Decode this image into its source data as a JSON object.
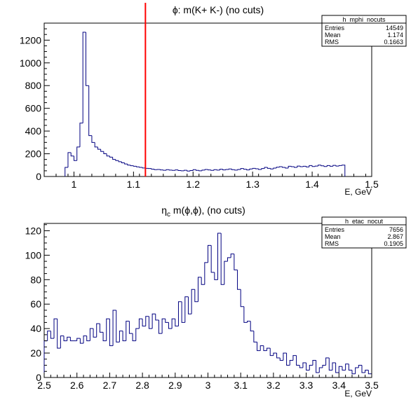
{
  "chart_data": [
    {
      "type": "histogram",
      "title": "ϕ: m(K+ K-) (no cuts)",
      "title_symbol": "ϕ",
      "title_rest": ": m(K+ K-) (no cuts)",
      "xlabel": "E, GeV",
      "ylabel": "",
      "xlim": [
        0.95,
        1.5
      ],
      "ylim": [
        0,
        1350
      ],
      "xticks": [
        {
          "value": 1.0,
          "label": "1"
        },
        {
          "value": 1.1,
          "label": "1.1"
        },
        {
          "value": 1.2,
          "label": "1.2"
        },
        {
          "value": 1.3,
          "label": "1.3"
        },
        {
          "value": 1.4,
          "label": "1.4"
        },
        {
          "value": 1.5,
          "label": "1.5"
        }
      ],
      "yticks": [
        {
          "value": 0,
          "label": "0"
        },
        {
          "value": 200,
          "label": "200"
        },
        {
          "value": 400,
          "label": "400"
        },
        {
          "value": 600,
          "label": "600"
        },
        {
          "value": 800,
          "label": "800"
        },
        {
          "value": 1000,
          "label": "1000"
        },
        {
          "value": 1200,
          "label": "1200"
        }
      ],
      "line_color": "#000080",
      "cut_line": {
        "x": 1.12,
        "color": "#ff0000"
      },
      "stats": {
        "name": "h_mphi_nocuts",
        "rows": [
          {
            "label": "Entries",
            "value": "14549"
          },
          {
            "label": "Mean",
            "value": "1.174"
          },
          {
            "label": "RMS",
            "value": "0.1663"
          }
        ]
      },
      "bin_start": 0.985,
      "bin_width": 0.005,
      "values": [
        80,
        210,
        180,
        140,
        260,
        470,
        1270,
        800,
        360,
        300,
        260,
        240,
        220,
        200,
        180,
        170,
        150,
        140,
        130,
        120,
        110,
        100,
        95,
        90,
        85,
        80,
        75,
        72,
        70,
        65,
        60,
        62,
        58,
        55,
        60,
        56,
        54,
        58,
        52,
        50,
        55,
        48,
        52,
        60,
        54,
        50,
        56,
        62,
        58,
        54,
        60,
        56,
        64,
        58,
        62,
        66,
        60,
        56,
        62,
        70,
        64,
        58,
        66,
        72,
        68,
        62,
        70,
        80,
        72,
        66,
        74,
        82,
        86,
        80,
        74,
        90,
        86,
        80,
        92,
        86,
        90,
        84,
        96,
        88,
        92,
        100,
        94,
        88,
        96,
        90,
        98,
        92,
        96,
        100
      ]
    },
    {
      "type": "histogram",
      "title": "η_c m(ϕ,ϕ), (no cuts)",
      "title_symbol": "η",
      "title_sub": "c",
      "title_rest": " m(ϕ,ϕ), (no cuts)",
      "xlabel": "E, GeV",
      "ylabel": "",
      "xlim": [
        2.5,
        3.5
      ],
      "ylim": [
        0,
        126
      ],
      "xticks": [
        {
          "value": 2.5,
          "label": "2.5"
        },
        {
          "value": 2.6,
          "label": "2.6"
        },
        {
          "value": 2.7,
          "label": "2.7"
        },
        {
          "value": 2.8,
          "label": "2.8"
        },
        {
          "value": 2.9,
          "label": "2.9"
        },
        {
          "value": 3.0,
          "label": "3"
        },
        {
          "value": 3.1,
          "label": "3.1"
        },
        {
          "value": 3.2,
          "label": "3.2"
        },
        {
          "value": 3.3,
          "label": "3.3"
        },
        {
          "value": 3.4,
          "label": "3.4"
        },
        {
          "value": 3.5,
          "label": "3.5"
        }
      ],
      "yticks": [
        {
          "value": 0,
          "label": "0"
        },
        {
          "value": 20,
          "label": "20"
        },
        {
          "value": 40,
          "label": "40"
        },
        {
          "value": 60,
          "label": "60"
        },
        {
          "value": 80,
          "label": "80"
        },
        {
          "value": 100,
          "label": "100"
        },
        {
          "value": 120,
          "label": "120"
        }
      ],
      "line_color": "#000080",
      "stats": {
        "name": "h_etac_nocut",
        "rows": [
          {
            "label": "Entries",
            "value": "7656"
          },
          {
            "label": "Mean",
            "value": "2.867"
          },
          {
            "label": "RMS",
            "value": "0.1905"
          }
        ]
      },
      "bin_start": 2.5,
      "bin_width": 0.01,
      "values": [
        30,
        38,
        32,
        48,
        24,
        34,
        30,
        33,
        30,
        30,
        32,
        28,
        34,
        30,
        40,
        33,
        44,
        37,
        30,
        48,
        26,
        55,
        29,
        38,
        30,
        46,
        36,
        30,
        40,
        48,
        42,
        50,
        40,
        52,
        47,
        36,
        48,
        45,
        40,
        48,
        42,
        62,
        45,
        66,
        52,
        72,
        62,
        82,
        76,
        94,
        108,
        86,
        80,
        118,
        76,
        95,
        98,
        101,
        88,
        72,
        58,
        45,
        46,
        38,
        29,
        22,
        26,
        22,
        24,
        18,
        20,
        16,
        14,
        20,
        10,
        14,
        18,
        10,
        8,
        12,
        6,
        10,
        14,
        4,
        8,
        10,
        16,
        6,
        12,
        4,
        9,
        6,
        11,
        6,
        3,
        8,
        10,
        4,
        6,
        3
      ]
    }
  ]
}
